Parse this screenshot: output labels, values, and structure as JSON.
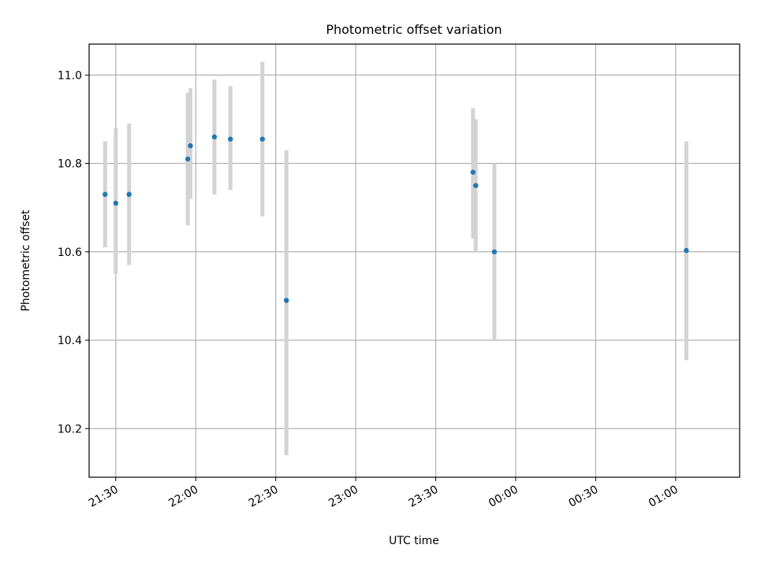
{
  "chart_data": {
    "type": "scatter",
    "title": "Photometric offset variation",
    "xlabel": "UTC time",
    "ylabel": "Photometric offset",
    "grid": true,
    "colors": {
      "point": "#1f77b4",
      "error_bar": "#d3d3d3"
    },
    "x_ticks": [
      "21:30",
      "22:00",
      "22:30",
      "23:00",
      "23:30",
      "00:00",
      "00:30",
      "01:00"
    ],
    "x_range": [
      "21:20",
      "01:24"
    ],
    "y_ticks": [
      "10.2",
      "10.4",
      "10.6",
      "10.8",
      "11.0"
    ],
    "ylim": [
      10.09,
      11.07
    ],
    "points": [
      {
        "x": "21:26",
        "y": 10.73,
        "err_low": 10.61,
        "err_high": 10.85
      },
      {
        "x": "21:30",
        "y": 10.71,
        "err_low": 10.55,
        "err_high": 10.88
      },
      {
        "x": "21:35",
        "y": 10.73,
        "err_low": 10.57,
        "err_high": 10.89
      },
      {
        "x": "21:57",
        "y": 10.81,
        "err_low": 10.66,
        "err_high": 10.96
      },
      {
        "x": "21:58",
        "y": 10.84,
        "err_low": 10.72,
        "err_high": 10.97
      },
      {
        "x": "22:07",
        "y": 10.86,
        "err_low": 10.73,
        "err_high": 10.99
      },
      {
        "x": "22:13",
        "y": 10.855,
        "err_low": 10.74,
        "err_high": 10.975
      },
      {
        "x": "22:25",
        "y": 10.855,
        "err_low": 10.68,
        "err_high": 11.03
      },
      {
        "x": "22:34",
        "y": 10.49,
        "err_low": 10.14,
        "err_high": 10.83
      },
      {
        "x": "23:44",
        "y": 10.78,
        "err_low": 10.63,
        "err_high": 10.925
      },
      {
        "x": "23:45",
        "y": 10.75,
        "err_low": 10.6,
        "err_high": 10.9
      },
      {
        "x": "23:52",
        "y": 10.6,
        "err_low": 10.4,
        "err_high": 10.8
      },
      {
        "x": "01:04",
        "y": 10.603,
        "err_low": 10.355,
        "err_high": 10.85
      }
    ]
  }
}
